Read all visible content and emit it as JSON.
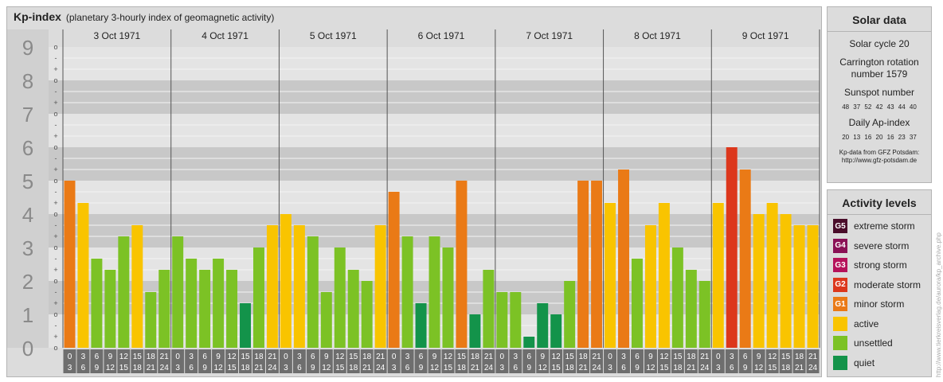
{
  "title": "Kp-index",
  "subtitle": "(planetary 3-hourly index of geomagnetic activity)",
  "chart_data": {
    "type": "bar",
    "ylim": [
      0,
      9
    ],
    "y_ticks": [
      "0",
      "1",
      "2",
      "3",
      "4",
      "5",
      "6",
      "7",
      "8",
      "9"
    ],
    "fraction_marks": [
      "+",
      "o",
      "-"
    ],
    "days": [
      "3 Oct 1971",
      "4 Oct 1971",
      "5 Oct 1971",
      "6 Oct 1971",
      "7 Oct 1971",
      "8 Oct 1971",
      "9 Oct 1971"
    ],
    "interval_starts": [
      "0",
      "3",
      "6",
      "9",
      "12",
      "15",
      "18",
      "21"
    ],
    "interval_ends": [
      "3",
      "6",
      "9",
      "12",
      "15",
      "18",
      "21",
      "24"
    ],
    "values": [
      5.0,
      4.333,
      2.667,
      2.333,
      3.333,
      3.667,
      1.667,
      2.333,
      3.333,
      2.667,
      2.333,
      2.667,
      2.333,
      1.333,
      3.0,
      3.667,
      4.0,
      3.667,
      3.333,
      1.667,
      3.0,
      2.333,
      2.0,
      3.667,
      4.667,
      3.333,
      1.333,
      3.333,
      3.0,
      5.0,
      1.0,
      2.333,
      1.667,
      1.667,
      0.333,
      1.333,
      1.0,
      2.0,
      5.0,
      5.0,
      4.333,
      5.333,
      2.667,
      3.667,
      4.333,
      3.0,
      2.333,
      2.0,
      4.333,
      6.0,
      5.333,
      4.0,
      4.333,
      4.0,
      3.667,
      3.667
    ],
    "colors": {
      "quiet": "#13934a",
      "unsettled": "#7cc225",
      "active": "#f9c400",
      "minor_storm": "#ea7a16",
      "moderate_storm": "#dc371c"
    }
  },
  "solar": {
    "title": "Solar data",
    "cycle": "Solar cycle 20",
    "carrington_line1": "Carrington rotation",
    "carrington_line2": "number 1579",
    "sunspot_label": "Sunspot number",
    "sunspot_values": "48 37 52 42 43 44 40",
    "ap_label": "Daily Ap-index",
    "ap_values": "20 13 16 20 16 23 37",
    "source_line1": "Kp-data from GFZ Potsdam:",
    "source_line2": "http://www.gfz-potsdam.de"
  },
  "activity": {
    "title": "Activity levels",
    "levels": [
      {
        "code": "G5",
        "label": "extreme storm",
        "color": "#4a0d2a"
      },
      {
        "code": "G4",
        "label": "severe storm",
        "color": "#8a1155"
      },
      {
        "code": "G3",
        "label": "strong storm",
        "color": "#b5125a"
      },
      {
        "code": "G2",
        "label": "moderate storm",
        "color": "#dc371c"
      },
      {
        "code": "G1",
        "label": "minor storm",
        "color": "#ea7a16"
      },
      {
        "code": "",
        "label": "active",
        "color": "#f9c400"
      },
      {
        "code": "",
        "label": "unsettled",
        "color": "#7cc225"
      },
      {
        "code": "",
        "label": "quiet",
        "color": "#13934a"
      }
    ]
  },
  "credit": "http://www.tierkreisverlag.de/aurora/kp_archive.php"
}
